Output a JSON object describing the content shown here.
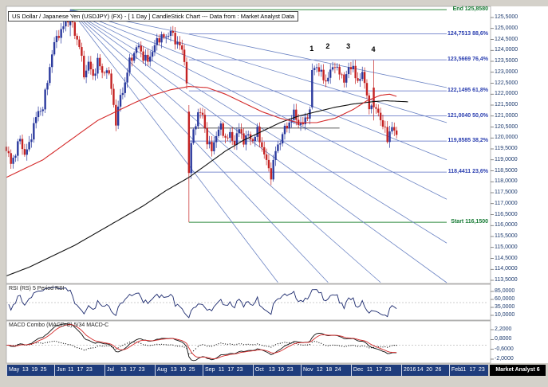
{
  "window": {
    "badge": "Market Analyst 6"
  },
  "title_bar": {
    "text": "US Dollar / Japanese Yen (USDJPY) (FX) -  [ 1 Day ] CandleStick Chart --- Data from : Market Analyst Data"
  },
  "colors": {
    "candle_up": "#2b3a9e",
    "candle_down": "#c42222",
    "ma_red": "#d42a2a",
    "ma_black": "#101010",
    "fan": "#6c84c4",
    "fib_blue": "#5468c0",
    "fib_blue_text": "#2b3fb0",
    "fib_green": "#2e8b3d",
    "fib_green_text": "#157a33",
    "rsi_line": "#1c2a6e",
    "axis_text": "#1c3a6e",
    "datebar_bg": "#1e3c7c"
  },
  "chart_data": {
    "type": "candlestick",
    "instrument": "US Dollar / Japanese Yen (USDJPY) (FX)",
    "period": "1 Day",
    "data_source": "Market Analyst Data",
    "y_axis": {
      "min": 113.5,
      "max": 125.5,
      "step": 0.5,
      "tick_values": [
        125.5,
        125.0,
        124.5,
        124.0,
        123.5,
        123.0,
        122.5,
        122.0,
        121.5,
        121.0,
        120.5,
        120.0,
        119.5,
        119.0,
        118.5,
        118.0,
        117.5,
        117.0,
        116.5,
        116.0,
        115.5,
        115.0,
        114.5,
        114.0,
        113.5
      ],
      "tick_labels": [
        "125,5000",
        "125,0000",
        "124,5000",
        "124,0000",
        "123,5000",
        "123,0000",
        "122,5000",
        "122,0000",
        "121,5000",
        "121,0000",
        "120,5000",
        "120,0000",
        "119,5000",
        "119,0000",
        "118,5000",
        "118,0000",
        "117,5000",
        "117,0000",
        "116,5000",
        "116,0000",
        "115,5000",
        "115,0000",
        "114,5000",
        "114,0000",
        "113,5000"
      ]
    },
    "x_axis": {
      "labels": [
        {
          "t": "May",
          "d": 0,
          "m": 1
        },
        {
          "t": "13",
          "d": 8
        },
        {
          "t": "19",
          "d": 12
        },
        {
          "t": "25",
          "d": 16
        },
        {
          "t": "Jun",
          "d": 21,
          "m": 1
        },
        {
          "t": "11",
          "d": 28
        },
        {
          "t": "17",
          "d": 32
        },
        {
          "t": "23",
          "d": 36
        },
        {
          "t": "Jul",
          "d": 43,
          "m": 1
        },
        {
          "t": "13",
          "d": 51
        },
        {
          "t": "17",
          "d": 55
        },
        {
          "t": "23",
          "d": 59
        },
        {
          "t": "Aug",
          "d": 65,
          "m": 1
        },
        {
          "t": "13",
          "d": 73
        },
        {
          "t": "19",
          "d": 77
        },
        {
          "t": "25",
          "d": 81
        },
        {
          "t": "Sep",
          "d": 86,
          "m": 1
        },
        {
          "t": "11",
          "d": 94
        },
        {
          "t": "17",
          "d": 98
        },
        {
          "t": "23",
          "d": 102
        },
        {
          "t": "Oct",
          "d": 108,
          "m": 1
        },
        {
          "t": "13",
          "d": 116
        },
        {
          "t": "19",
          "d": 120
        },
        {
          "t": "23",
          "d": 124
        },
        {
          "t": "Nov",
          "d": 129,
          "m": 1
        },
        {
          "t": "12",
          "d": 137
        },
        {
          "t": "18",
          "d": 141
        },
        {
          "t": "24",
          "d": 145
        },
        {
          "t": "Dec",
          "d": 151,
          "m": 1
        },
        {
          "t": "11",
          "d": 159
        },
        {
          "t": "17",
          "d": 163
        },
        {
          "t": "23",
          "d": 167
        },
        {
          "t": "2016",
          "d": 173,
          "m": 1
        },
        {
          "t": "14",
          "d": 181
        },
        {
          "t": "20",
          "d": 185
        },
        {
          "t": "26",
          "d": 189
        },
        {
          "t": "Feb",
          "d": 194,
          "m": 1
        },
        {
          "t": "11",
          "d": 200
        },
        {
          "t": "17",
          "d": 204
        },
        {
          "t": "23",
          "d": 208
        }
      ]
    },
    "candles": {
      "count": 172,
      "noise_amp": 0.22,
      "anchors": [
        [
          0,
          119.4
        ],
        [
          2,
          118.9
        ],
        [
          4,
          119.3
        ],
        [
          6,
          120.0
        ],
        [
          8,
          119.2
        ],
        [
          10,
          119.7
        ],
        [
          12,
          120.6
        ],
        [
          14,
          121.2
        ],
        [
          16,
          121.4
        ],
        [
          18,
          122.6
        ],
        [
          20,
          123.9
        ],
        [
          22,
          124.6
        ],
        [
          24,
          124.9
        ],
        [
          26,
          125.3
        ],
        [
          28,
          125.6
        ],
        [
          30,
          124.7
        ],
        [
          32,
          124.3
        ],
        [
          34,
          122.8
        ],
        [
          36,
          123.5
        ],
        [
          38,
          122.7
        ],
        [
          40,
          123.6
        ],
        [
          42,
          122.9
        ],
        [
          44,
          123.2
        ],
        [
          46,
          122.3
        ],
        [
          48,
          120.7
        ],
        [
          50,
          121.9
        ],
        [
          52,
          122.5
        ],
        [
          54,
          123.5
        ],
        [
          56,
          123.9
        ],
        [
          58,
          124.2
        ],
        [
          60,
          123.7
        ],
        [
          62,
          123.5
        ],
        [
          64,
          124.0
        ],
        [
          66,
          124.4
        ],
        [
          68,
          124.7
        ],
        [
          70,
          124.5
        ],
        [
          72,
          125.0
        ],
        [
          74,
          124.3
        ],
        [
          76,
          124.4
        ],
        [
          78,
          123.4
        ],
        [
          79,
          122.6
        ],
        [
          80,
          118.4
        ],
        [
          81,
          119.8
        ],
        [
          82,
          120.2
        ],
        [
          84,
          121.2
        ],
        [
          86,
          121.0
        ],
        [
          88,
          119.9
        ],
        [
          90,
          119.4
        ],
        [
          92,
          120.2
        ],
        [
          94,
          120.5
        ],
        [
          96,
          120.0
        ],
        [
          98,
          120.1
        ],
        [
          100,
          119.8
        ],
        [
          102,
          120.4
        ],
        [
          104,
          119.9
        ],
        [
          106,
          120.1
        ],
        [
          108,
          119.9
        ],
        [
          110,
          120.3
        ],
        [
          112,
          119.6
        ],
        [
          114,
          118.9
        ],
        [
          116,
          118.3
        ],
        [
          118,
          119.4
        ],
        [
          120,
          119.9
        ],
        [
          122,
          120.4
        ],
        [
          124,
          120.7
        ],
        [
          126,
          121.1
        ],
        [
          128,
          120.7
        ],
        [
          130,
          120.6
        ],
        [
          132,
          121.1
        ],
        [
          133,
          121.2
        ],
        [
          134,
          123.1
        ],
        [
          136,
          123.3
        ],
        [
          138,
          122.9
        ],
        [
          140,
          122.6
        ],
        [
          142,
          123.0
        ],
        [
          144,
          123.4
        ],
        [
          146,
          122.9
        ],
        [
          148,
          122.7
        ],
        [
          150,
          123.1
        ],
        [
          152,
          123.3
        ],
        [
          154,
          122.4
        ],
        [
          156,
          123.1
        ],
        [
          158,
          121.9
        ],
        [
          159,
          121.2
        ],
        [
          160,
          121.7
        ],
        [
          161,
          121.4
        ],
        [
          162,
          121.3
        ],
        [
          164,
          120.9
        ],
        [
          166,
          120.3
        ],
        [
          167,
          119.9
        ],
        [
          168,
          120.3
        ],
        [
          169,
          120.6
        ],
        [
          170,
          120.2
        ],
        [
          171,
          120.1
        ]
      ],
      "specials": [
        {
          "day": 28,
          "o": 125.15,
          "h": 125.86,
          "l": 124.65,
          "c": 125.6
        },
        {
          "day": 80,
          "o": 121.2,
          "h": 121.5,
          "l": 116.15,
          "c": 118.4
        },
        {
          "day": 134,
          "o": 121.4,
          "h": 123.4,
          "l": 121.3,
          "c": 123.1
        },
        {
          "day": 161,
          "o": 122.3,
          "h": 123.55,
          "l": 120.8,
          "c": 121.4
        }
      ]
    },
    "overlays": {
      "ma_red_anchors": [
        [
          0,
          118.2
        ],
        [
          8,
          118.6
        ],
        [
          16,
          119.0
        ],
        [
          24,
          119.6
        ],
        [
          32,
          120.2
        ],
        [
          40,
          120.8
        ],
        [
          48,
          121.2
        ],
        [
          56,
          121.6
        ],
        [
          64,
          121.95
        ],
        [
          72,
          122.2
        ],
        [
          80,
          122.35
        ],
        [
          88,
          122.3
        ],
        [
          96,
          122.0
        ],
        [
          104,
          121.6
        ],
        [
          112,
          121.2
        ],
        [
          120,
          120.9
        ],
        [
          128,
          120.7
        ],
        [
          136,
          120.7
        ],
        [
          144,
          120.9
        ],
        [
          152,
          121.3
        ],
        [
          158,
          121.7
        ],
        [
          164,
          121.95
        ],
        [
          168,
          122.0
        ],
        [
          171,
          121.9
        ]
      ],
      "ma_black_anchors": [
        [
          0,
          113.7
        ],
        [
          10,
          114.1
        ],
        [
          20,
          114.6
        ],
        [
          30,
          115.1
        ],
        [
          40,
          115.7
        ],
        [
          50,
          116.3
        ],
        [
          60,
          116.9
        ],
        [
          70,
          117.6
        ],
        [
          80,
          118.2
        ],
        [
          88,
          118.8
        ],
        [
          96,
          119.4
        ],
        [
          104,
          119.9
        ],
        [
          112,
          120.3
        ],
        [
          120,
          120.7
        ],
        [
          128,
          121.0
        ],
        [
          136,
          121.2
        ],
        [
          144,
          121.4
        ],
        [
          152,
          121.55
        ],
        [
          160,
          121.65
        ],
        [
          166,
          121.7
        ],
        [
          176,
          121.65
        ]
      ],
      "support_line": {
        "price": 120.45,
        "from_day": 80,
        "to_day": 146
      },
      "fan": {
        "origin_day": 28,
        "origin_price": 125.858,
        "rays": [
          [
            193,
            122.3
          ],
          [
            193,
            120.7
          ],
          [
            193,
            119.0
          ],
          [
            193,
            117.2
          ],
          [
            193,
            115.2
          ],
          [
            193,
            113.3
          ],
          [
            164,
            113.4
          ],
          [
            141,
            113.4
          ],
          [
            119,
            113.4
          ]
        ]
      }
    },
    "fibonacci": {
      "end": {
        "label": "End 125,8580",
        "price": 125.858,
        "from_day": 28
      },
      "start": {
        "label": "Start 116,1500",
        "price": 116.15,
        "from_day": 80
      },
      "levels": [
        {
          "label": "124,7513 88,6%",
          "price": 124.7513,
          "pct": 88.6
        },
        {
          "label": "123,5669 76,4%",
          "price": 123.5669,
          "pct": 76.4
        },
        {
          "label": "122,1495 61,8%",
          "price": 122.1495,
          "pct": 61.8
        },
        {
          "label": "121,0040 50,0%",
          "price": 121.004,
          "pct": 50.0
        },
        {
          "label": "119,8585 38,2%",
          "price": 119.8585,
          "pct": 38.2
        },
        {
          "label": "118,4411 23,6%",
          "price": 118.4411,
          "pct": 23.6
        }
      ]
    },
    "annotations": [
      {
        "text": "1",
        "day": 134,
        "price": 123.9
      },
      {
        "text": "2",
        "day": 141,
        "price": 124.0
      },
      {
        "text": "3",
        "day": 150,
        "price": 124.0
      },
      {
        "text": "4",
        "day": 161,
        "price": 123.85
      }
    ],
    "rsi": {
      "label": "RSI (RS) 5 Period RSI",
      "period": 5,
      "tick_values": [
        85,
        60,
        35,
        10
      ],
      "tick_labels": [
        "85,0000",
        "60,0000",
        "35,0000",
        "10,0000"
      ]
    },
    "macd": {
      "label": "MACD Combo (MACD-C) 5/34 MACD-C",
      "fast": 5,
      "slow": 34,
      "signal": 5,
      "tick_values": [
        2.2,
        0.8,
        -0.6,
        -2.0
      ],
      "tick_labels": [
        "2,2000",
        "0,8000",
        "-0,6000",
        "-2,0000"
      ]
    }
  }
}
